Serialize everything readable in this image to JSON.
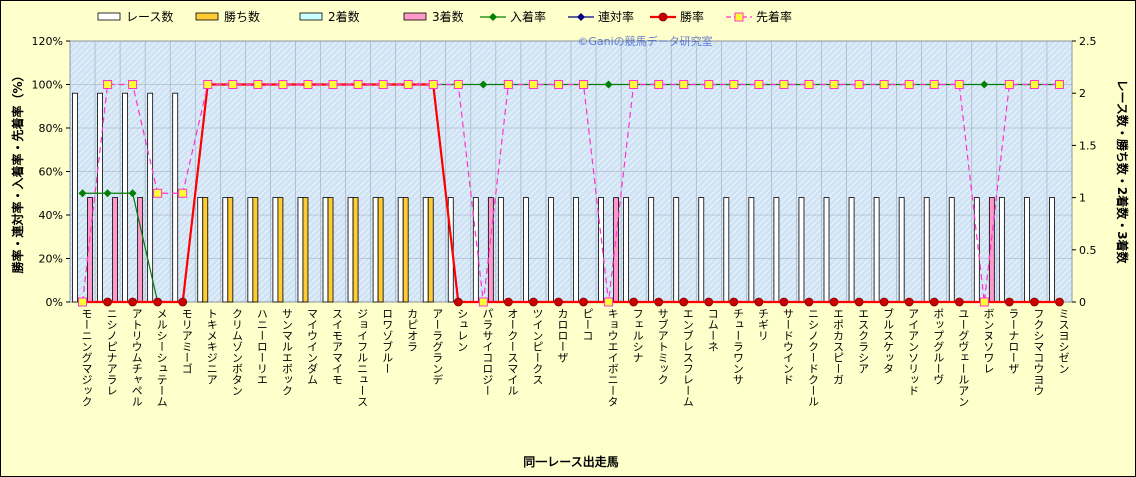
{
  "chart_data": {
    "type": "bar",
    "xlabel": "同一レース出走馬",
    "ylabel_left": "勝率・連対率・入着率・先着率（%）",
    "ylabel_right": "レース数・勝ち数・2着数・3着数",
    "watermark": "©Ganiの競馬データ研究室",
    "ylim_left": [
      0,
      120
    ],
    "ylim_right": [
      0,
      2.5
    ],
    "yticks_left": [
      "0%",
      "20%",
      "40%",
      "60%",
      "80%",
      "100%",
      "120%"
    ],
    "yticks_right": [
      "0",
      "0.5",
      "1",
      "1.5",
      "2",
      "2.5"
    ],
    "grid": true,
    "legend_position": "top",
    "categories": [
      "モーニングマジック",
      "ニシノピナアラレ",
      "アトリウムチャペル",
      "メルシーシュテーム",
      "モリアミーゴ",
      "トキメキジニア",
      "クリムゾンボタン",
      "ハニーローリエ",
      "サンマルエボック",
      "マイウインダム",
      "スイモアマイモ",
      "ジョイフルニュース",
      "ロワゾブルー",
      "カピオラ",
      "アーラグランデ",
      "シュレン",
      "パラサイコロジー",
      "オークースマイル",
      "ツインピークス",
      "カロローザ",
      "ピーコ",
      "キョウエイボニータ",
      "フェルシナ",
      "サブアトミック",
      "エンブレスフレーム",
      "コムーネ",
      "チューラワンサ",
      "チギリ",
      "サードウインド",
      "ニシノクードクール",
      "エポカスピーガ",
      "エスクラシア",
      "ブルスケッタ",
      "アイアンソリッド",
      "ポップグルーヴ",
      "ユーグヴェールアン",
      "ボンヌソワレ",
      "ラーナローザ",
      "フクシマコウヨウ",
      "ミスヨシゼン"
    ],
    "series": [
      {
        "name": "レース数",
        "axis": "right",
        "kind": "bar",
        "color": "#ffffff",
        "values": [
          2,
          2,
          2,
          2,
          2,
          1,
          1,
          1,
          1,
          1,
          1,
          1,
          1,
          1,
          1,
          1,
          1,
          1,
          1,
          1,
          1,
          1,
          1,
          1,
          1,
          1,
          1,
          1,
          1,
          1,
          1,
          1,
          1,
          1,
          1,
          1,
          1,
          1,
          1,
          1
        ]
      },
      {
        "name": "勝ち数",
        "axis": "right",
        "kind": "bar",
        "color": "#ffcc33",
        "values": [
          0,
          0,
          0,
          0,
          0,
          1,
          1,
          1,
          1,
          1,
          1,
          1,
          1,
          1,
          1,
          0,
          0,
          0,
          0,
          0,
          0,
          0,
          0,
          0,
          0,
          0,
          0,
          0,
          0,
          0,
          0,
          0,
          0,
          0,
          0,
          0,
          0,
          0,
          0,
          0
        ]
      },
      {
        "name": "2着数",
        "axis": "right",
        "kind": "bar",
        "color": "#ccffff",
        "values": [
          0,
          0,
          0,
          0,
          0,
          0,
          0,
          0,
          0,
          0,
          0,
          0,
          0,
          0,
          0,
          0,
          0,
          0,
          0,
          0,
          0,
          0,
          0,
          0,
          0,
          0,
          0,
          0,
          0,
          0,
          0,
          0,
          0,
          0,
          0,
          0,
          0,
          0,
          0,
          0
        ]
      },
      {
        "name": "3着数",
        "axis": "right",
        "kind": "bar",
        "color": "#ff99cc",
        "values": [
          1,
          1,
          1,
          0,
          0,
          0,
          0,
          0,
          0,
          0,
          0,
          0,
          0,
          0,
          0,
          0,
          1,
          0,
          0,
          0,
          0,
          1,
          0,
          0,
          0,
          0,
          0,
          0,
          0,
          0,
          0,
          0,
          0,
          0,
          0,
          0,
          1,
          0,
          0,
          0
        ]
      },
      {
        "name": "入着率",
        "axis": "left",
        "kind": "line",
        "color": "#008000",
        "values": [
          50,
          50,
          50,
          0,
          0,
          100,
          100,
          100,
          100,
          100,
          100,
          100,
          100,
          100,
          100,
          100,
          100,
          100,
          100,
          100,
          100,
          100,
          100,
          100,
          100,
          100,
          100,
          100,
          100,
          100,
          100,
          100,
          100,
          100,
          100,
          100,
          100,
          100,
          100,
          100
        ]
      },
      {
        "name": "連対率",
        "axis": "left",
        "kind": "line",
        "color": "#000080",
        "values": [
          0,
          0,
          0,
          0,
          0,
          100,
          100,
          100,
          100,
          100,
          100,
          100,
          100,
          100,
          100,
          0,
          0,
          0,
          0,
          0,
          0,
          0,
          0,
          0,
          0,
          0,
          0,
          0,
          0,
          0,
          0,
          0,
          0,
          0,
          0,
          0,
          0,
          0,
          0,
          0
        ]
      },
      {
        "name": "勝率",
        "axis": "left",
        "kind": "line",
        "color": "#ff0000",
        "values": [
          0,
          0,
          0,
          0,
          0,
          100,
          100,
          100,
          100,
          100,
          100,
          100,
          100,
          100,
          100,
          0,
          0,
          0,
          0,
          0,
          0,
          0,
          0,
          0,
          0,
          0,
          0,
          0,
          0,
          0,
          0,
          0,
          0,
          0,
          0,
          0,
          0,
          0,
          0,
          0
        ]
      },
      {
        "name": "先着率",
        "axis": "left",
        "kind": "line",
        "color": "#ff33cc",
        "values": [
          0,
          100,
          100,
          50,
          50,
          100,
          100,
          100,
          100,
          100,
          100,
          100,
          100,
          100,
          100,
          100,
          0,
          100,
          100,
          100,
          100,
          0,
          100,
          100,
          100,
          100,
          100,
          100,
          100,
          100,
          100,
          100,
          100,
          100,
          100,
          100,
          0,
          100,
          100,
          100
        ]
      }
    ]
  }
}
